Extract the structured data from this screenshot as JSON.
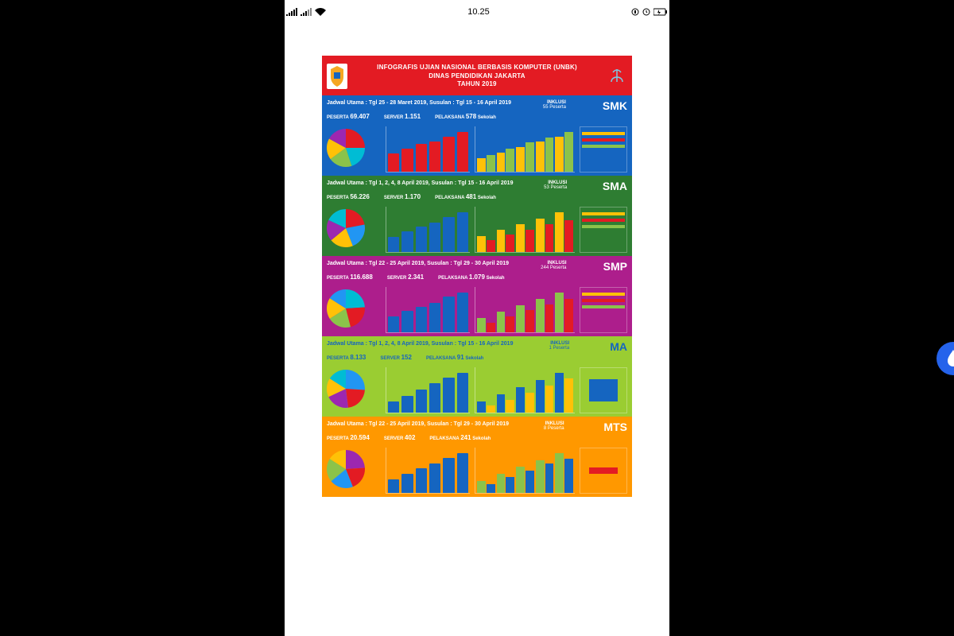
{
  "status_bar": {
    "time": "10.25",
    "icon_color": "#000000"
  },
  "header": {
    "title_line1": "INFOGRAFIS UJIAN NASIONAL BERBASIS KOMPUTER (UNBK)",
    "title_line2": "DINAS PENDIDIKAN JAKARTA",
    "title_line3": "TAHUN 2019",
    "bg_color": "#e31b23",
    "text_color": "#ffffff",
    "crest_bg": "#ffffff",
    "crest_accent": "#f5a623"
  },
  "sections": [
    {
      "id": "smk",
      "badge": "SMK",
      "bg_color": "#1565c0",
      "badge_color": "#ffffff",
      "schedule": "Jadwal Utama : Tgl 25 - 28 Maret 2019, Susulan : Tgl 15 - 16 April 2019",
      "inklusi_label": "INKLUSI",
      "inklusi_value": "55 Peserta",
      "peserta_label": "PESERTA",
      "peserta_value": "69.407",
      "server_label": "SERVER",
      "server_value": "1.151",
      "pelaksana_label": "PELAKSANA",
      "pelaksana_value": "578",
      "pelaksana_unit": "Sekolah",
      "pie": {
        "slices": [
          {
            "color": "#e31b23",
            "pct": 25
          },
          {
            "color": "#00bcd4",
            "pct": 20
          },
          {
            "color": "#8bc34a",
            "pct": 20
          },
          {
            "color": "#ffc107",
            "pct": 18
          },
          {
            "color": "#9c27b0",
            "pct": 17
          }
        ]
      },
      "bar1": {
        "color": "#e31b23",
        "values": [
          25,
          32,
          38,
          42,
          48,
          55
        ]
      },
      "bar2": {
        "colors": [
          "#ffc107",
          "#8bc34a"
        ],
        "groups": [
          [
            18,
            22
          ],
          [
            25,
            30
          ],
          [
            32,
            38
          ],
          [
            40,
            45
          ],
          [
            46,
            52
          ]
        ]
      }
    },
    {
      "id": "sma",
      "badge": "SMA",
      "bg_color": "#2e7d32",
      "badge_color": "#ffffff",
      "schedule": "Jadwal Utama : Tgl 1, 2, 4, 8 April 2019, Susulan : Tgl 15 - 16 April 2019",
      "inklusi_label": "INKLUSI",
      "inklusi_value": "53 Peserta",
      "peserta_label": "PESERTA",
      "peserta_value": "56.226",
      "server_label": "SERVER",
      "server_value": "1.170",
      "pelaksana_label": "PELAKSANA",
      "pelaksana_value": "481",
      "pelaksana_unit": "Sekolah",
      "pie": {
        "slices": [
          {
            "color": "#e31b23",
            "pct": 22
          },
          {
            "color": "#2196f3",
            "pct": 22
          },
          {
            "color": "#ffc107",
            "pct": 20
          },
          {
            "color": "#9c27b0",
            "pct": 18
          },
          {
            "color": "#00bcd4",
            "pct": 18
          }
        ]
      },
      "bar1": {
        "color": "#1565c0",
        "values": [
          20,
          28,
          35,
          40,
          48,
          54
        ]
      },
      "bar2": {
        "colors": [
          "#ffc107",
          "#e31b23"
        ],
        "groups": [
          [
            20,
            15
          ],
          [
            28,
            22
          ],
          [
            35,
            28
          ],
          [
            42,
            35
          ],
          [
            50,
            40
          ]
        ]
      }
    },
    {
      "id": "smp",
      "badge": "SMP",
      "bg_color": "#ad1e8c",
      "badge_color": "#ffffff",
      "schedule": "Jadwal Utama : Tgl 22 - 25 April 2019, Susulan : Tgl 29 - 30 April 2019",
      "inklusi_label": "INKLUSI",
      "inklusi_value": "244 Peserta",
      "peserta_label": "PESERTA",
      "peserta_value": "116.688",
      "server_label": "SERVER",
      "server_value": "2.341",
      "pelaksana_label": "PELAKSANA",
      "pelaksana_value": "1.079",
      "pelaksana_unit": "Sekolah",
      "pie": {
        "slices": [
          {
            "color": "#00bcd4",
            "pct": 24
          },
          {
            "color": "#e31b23",
            "pct": 22
          },
          {
            "color": "#8bc34a",
            "pct": 20
          },
          {
            "color": "#ffc107",
            "pct": 18
          },
          {
            "color": "#2196f3",
            "pct": 16
          }
        ]
      },
      "bar1": {
        "color": "#1565c0",
        "values": [
          22,
          30,
          36,
          42,
          50,
          56
        ]
      },
      "bar2": {
        "colors": [
          "#8bc34a",
          "#e31b23"
        ],
        "groups": [
          [
            18,
            12
          ],
          [
            26,
            20
          ],
          [
            34,
            28
          ],
          [
            42,
            35
          ],
          [
            50,
            42
          ]
        ]
      }
    },
    {
      "id": "ma",
      "badge": "MA",
      "bg_color": "#9acd32",
      "badge_color": "#1565c0",
      "text_color": "#1565c0",
      "schedule": "Jadwal Utama : Tgl 1, 2, 4, 8 April 2019, Susulan : Tgl 15 - 16 April 2019",
      "inklusi_label": "INKLUSI",
      "inklusi_value": "1 Peserta",
      "peserta_label": "PESERTA",
      "peserta_value": "8.133",
      "server_label": "SERVER",
      "server_value": "152",
      "pelaksana_label": "PELAKSANA",
      "pelaksana_value": "91",
      "pelaksana_unit": "Sekolah",
      "pie": {
        "slices": [
          {
            "color": "#2196f3",
            "pct": 26
          },
          {
            "color": "#e31b23",
            "pct": 22
          },
          {
            "color": "#9c27b0",
            "pct": 20
          },
          {
            "color": "#ffc107",
            "pct": 16
          },
          {
            "color": "#00bcd4",
            "pct": 16
          }
        ]
      },
      "bar1": {
        "color": "#1565c0",
        "values": [
          15,
          22,
          30,
          38,
          46,
          52
        ]
      },
      "bar2": {
        "colors": [
          "#1565c0",
          "#ffc107"
        ],
        "groups": [
          [
            12,
            8
          ],
          [
            20,
            14
          ],
          [
            28,
            22
          ],
          [
            36,
            30
          ],
          [
            44,
            38
          ]
        ]
      },
      "side_box": {
        "fill": "#1565c0"
      }
    },
    {
      "id": "mts",
      "badge": "MTS",
      "bg_color": "#ff9800",
      "badge_color": "#ffffff",
      "schedule": "Jadwal Utama : Tgl 22 - 25 April 2019, Susulan : Tgl 29 - 30 April 2019",
      "inklusi_label": "INKLUSI",
      "inklusi_value": "8 Peserta",
      "peserta_label": "PESERTA",
      "peserta_value": "20.594",
      "server_label": "SERVER",
      "server_value": "402",
      "pelaksana_label": "PELAKSANA",
      "pelaksana_value": "241",
      "pelaksana_unit": "Sekolah",
      "pie": {
        "slices": [
          {
            "color": "#9c27b0",
            "pct": 24
          },
          {
            "color": "#e31b23",
            "pct": 20
          },
          {
            "color": "#2196f3",
            "pct": 20
          },
          {
            "color": "#8bc34a",
            "pct": 20
          },
          {
            "color": "#ffc107",
            "pct": 16
          }
        ]
      },
      "bar1": {
        "color": "#1565c0",
        "values": [
          18,
          26,
          34,
          40,
          48,
          54
        ]
      },
      "bar2": {
        "colors": [
          "#8bc34a",
          "#1565c0"
        ],
        "groups": [
          [
            14,
            10
          ],
          [
            22,
            18
          ],
          [
            30,
            26
          ],
          [
            38,
            34
          ],
          [
            46,
            40
          ]
        ]
      },
      "side_box": {
        "fill": "#e31b23",
        "small": true
      }
    }
  ],
  "fab": {
    "bg": "#2563eb",
    "icon_color": "#ffffff"
  }
}
